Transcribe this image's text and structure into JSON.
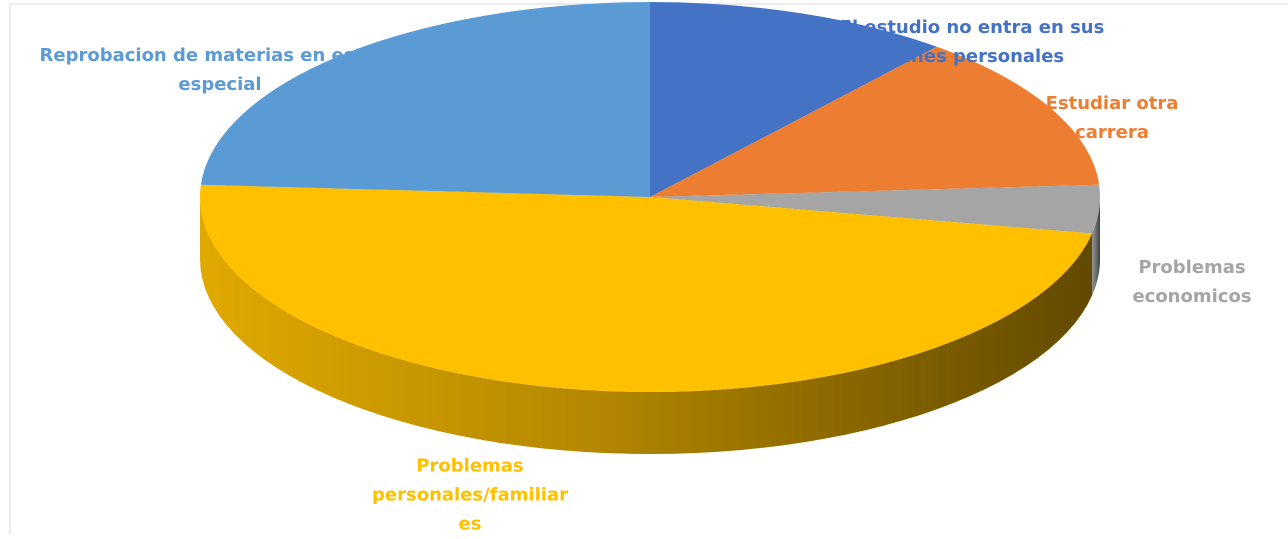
{
  "chart_data": {
    "type": "pie3d",
    "categories": [
      "El estudio no entra en sus planes personales",
      "Estudiar otra carrera",
      "Problemas economicos",
      "Problemas personales/familiares",
      "Reprobacion de materias en estado especial"
    ],
    "values": [
      11,
      13,
      4,
      48,
      24
    ],
    "colors": [
      "#4472c4",
      "#ed7d31",
      "#a5a5a5",
      "#ffc000",
      "#5b9bd5"
    ]
  }
}
